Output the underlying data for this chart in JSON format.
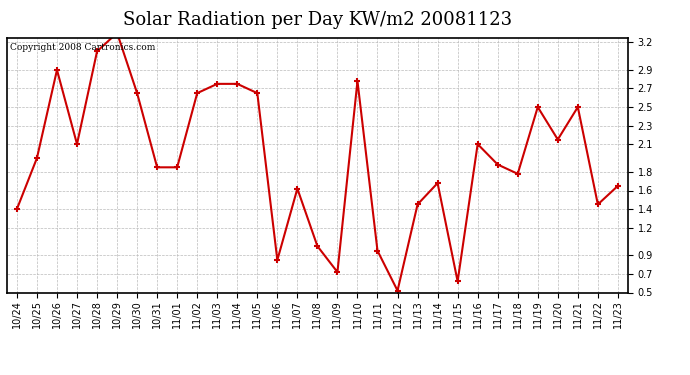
{
  "title": "Solar Radiation per Day KW/m2 20081123",
  "copyright_text": "Copyright 2008 Cartronics.com",
  "dates": [
    "10/24",
    "10/25",
    "10/26",
    "10/27",
    "10/28",
    "10/29",
    "10/30",
    "10/31",
    "11/01",
    "11/02",
    "11/03",
    "11/04",
    "11/05",
    "11/06",
    "11/07",
    "11/08",
    "11/09",
    "11/10",
    "11/11",
    "11/12",
    "11/13",
    "11/14",
    "11/15",
    "11/16",
    "11/17",
    "11/18",
    "11/19",
    "11/20",
    "11/21",
    "11/22",
    "11/23"
  ],
  "values": [
    1.4,
    1.95,
    2.9,
    2.1,
    3.1,
    3.3,
    2.65,
    1.85,
    1.85,
    2.65,
    2.75,
    2.75,
    2.65,
    0.85,
    1.62,
    1.0,
    0.72,
    2.78,
    0.95,
    0.52,
    1.45,
    1.68,
    0.62,
    2.1,
    1.88,
    1.78,
    2.5,
    2.15,
    2.5,
    1.45,
    1.65
  ],
  "line_color": "#cc0000",
  "marker_color": "#cc0000",
  "marker": "+",
  "bg_color": "#ffffff",
  "grid_color": "#bbbbbb",
  "ylim": [
    0.5,
    3.25
  ],
  "yticks": [
    0.5,
    0.7,
    0.9,
    1.2,
    1.4,
    1.6,
    1.8,
    2.1,
    2.3,
    2.5,
    2.7,
    2.9,
    3.2
  ],
  "title_fontsize": 13,
  "tick_fontsize": 7,
  "copyright_fontsize": 6.5
}
